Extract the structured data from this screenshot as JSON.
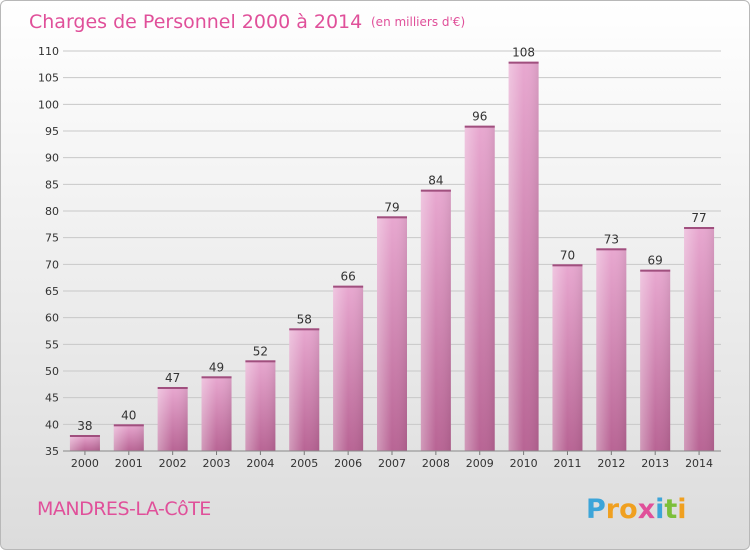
{
  "chart_data": {
    "type": "bar",
    "title": "Charges de Personnel 2000 à 2014",
    "subtitle": "(en milliers d'€)",
    "categories": [
      "2000",
      "2001",
      "2002",
      "2003",
      "2004",
      "2005",
      "2006",
      "2007",
      "2008",
      "2009",
      "2010",
      "2011",
      "2012",
      "2013",
      "2014"
    ],
    "values": [
      38,
      40,
      47,
      49,
      52,
      58,
      66,
      79,
      84,
      96,
      108,
      70,
      73,
      69,
      77
    ],
    "ylim": [
      35,
      110
    ],
    "yticks": [
      35,
      40,
      45,
      50,
      55,
      60,
      65,
      70,
      75,
      80,
      85,
      90,
      95,
      100,
      105,
      110
    ],
    "grid": true,
    "bar_color": "#c8689e",
    "grid_color": "#c8c8c8"
  },
  "footer": {
    "commune": "MANDRES-LA-CôTE",
    "brand": {
      "letters": [
        "P",
        "r",
        "o",
        "x",
        "i",
        "t",
        "i"
      ],
      "colors": [
        "#3da5d9",
        "#f0a020",
        "#f0a020",
        "#e0509a",
        "#3da5d9",
        "#7cbf3a",
        "#f0a020"
      ]
    }
  },
  "colors": {
    "accent": "#e0509a"
  }
}
